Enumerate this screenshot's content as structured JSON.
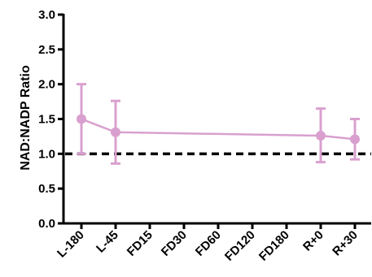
{
  "chart_data": {
    "type": "line",
    "title": "",
    "xlabel": "",
    "ylabel": "NAD:NADP Ratio",
    "categories": [
      "L-180",
      "L-45",
      "FD15",
      "FD30",
      "FD60",
      "FD120",
      "FD180",
      "R+0",
      "R+30"
    ],
    "ylim": [
      0.0,
      3.0
    ],
    "yticks": [
      "0.0",
      "0.5",
      "1.0",
      "1.5",
      "2.0",
      "2.5",
      "3.0"
    ],
    "series": [
      {
        "color": "#d9a0cf",
        "values": [
          1.5,
          1.31,
          null,
          null,
          null,
          null,
          null,
          1.26,
          1.21
        ],
        "error_upper": [
          2.0,
          1.76,
          null,
          null,
          null,
          null,
          null,
          1.65,
          1.5
        ],
        "error_lower": [
          1.0,
          0.86,
          null,
          null,
          null,
          null,
          null,
          0.88,
          0.92
        ]
      }
    ],
    "reference_line": {
      "y": 1.0,
      "style": "dashed",
      "color": "#000000"
    },
    "grid": false,
    "legend": "none"
  }
}
